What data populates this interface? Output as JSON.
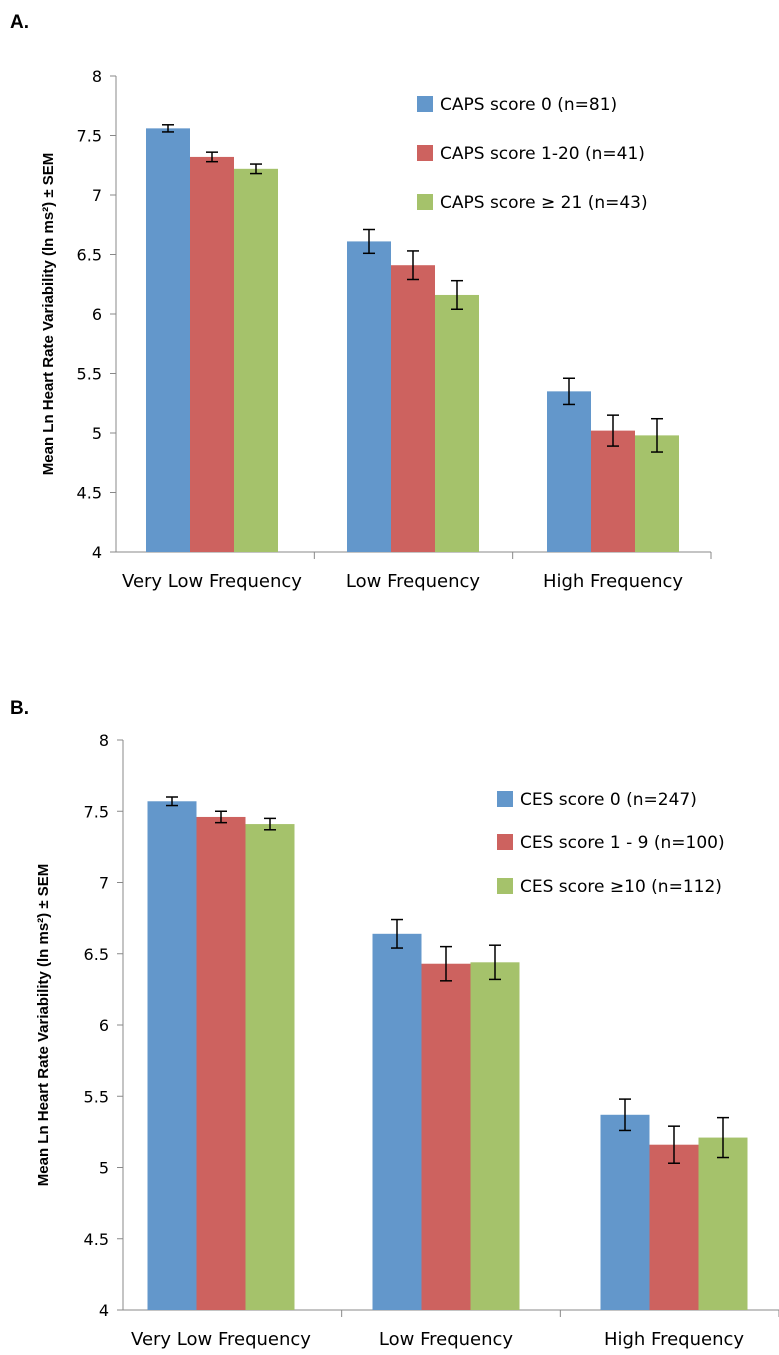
{
  "chart_data": [
    {
      "panel_label": "A.",
      "type": "bar",
      "ylabel": "Mean Ln Heart Rate Variability (ln ms²) ± SEM",
      "ylim": [
        4,
        8
      ],
      "yticks": [
        "4",
        "4.5",
        "5",
        "5.5",
        "6",
        "6.5",
        "7",
        "7.5",
        "8"
      ],
      "categories": [
        "Very Low Frequency",
        "Low Frequency",
        "High Frequency"
      ],
      "legend_position": "top-right",
      "series": [
        {
          "name": "CAPS score 0 (n=81)",
          "color": "#6397cb",
          "values": [
            7.56,
            6.61,
            5.35
          ],
          "sem": [
            0.03,
            0.1,
            0.11
          ]
        },
        {
          "name": "CAPS score 1-20 (n=41)",
          "color": "#cd625f",
          "values": [
            7.32,
            6.41,
            5.02
          ],
          "sem": [
            0.04,
            0.12,
            0.13
          ]
        },
        {
          "name": "CAPS score ≥ 21 (n=43)",
          "color": "#a5c26b",
          "values": [
            7.22,
            6.16,
            4.98
          ],
          "sem": [
            0.04,
            0.12,
            0.14
          ]
        }
      ]
    },
    {
      "panel_label": "B.",
      "type": "bar",
      "ylabel": "Mean Ln Heart Rate Variability (ln ms²) ± SEM",
      "ylim": [
        4,
        8
      ],
      "yticks": [
        "4",
        "4.5",
        "5",
        "5.5",
        "6",
        "6.5",
        "7",
        "7.5",
        "8"
      ],
      "categories": [
        "Very Low Frequency",
        "Low Frequency",
        "High Frequency"
      ],
      "legend_position": "top-right",
      "series": [
        {
          "name": "CES score 0 (n=247)",
          "color": "#6397cb",
          "values": [
            7.57,
            6.64,
            5.37
          ],
          "sem": [
            0.03,
            0.1,
            0.11
          ]
        },
        {
          "name": "CES score 1 - 9 (n=100)",
          "color": "#cd625f",
          "values": [
            7.46,
            6.43,
            5.16
          ],
          "sem": [
            0.04,
            0.12,
            0.13
          ]
        },
        {
          "name": "CES score ≥10 (n=112)",
          "color": "#a5c26b",
          "values": [
            7.41,
            6.44,
            5.21
          ],
          "sem": [
            0.04,
            0.12,
            0.14
          ]
        }
      ]
    }
  ]
}
